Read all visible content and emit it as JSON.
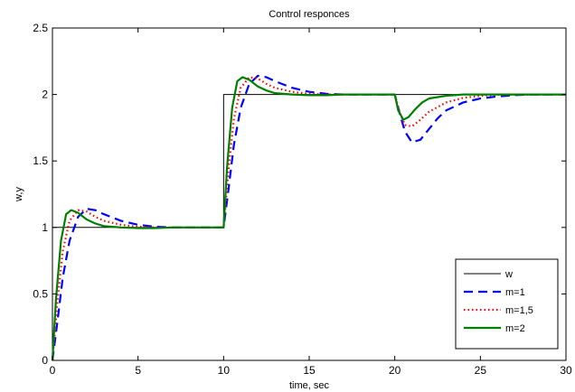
{
  "chart_data": {
    "type": "line",
    "title": "Control responces",
    "xlabel": "time, sec",
    "ylabel": "w,y",
    "xlim": [
      0,
      30
    ],
    "ylim": [
      0,
      2.5
    ],
    "xticks": [
      "0",
      "5",
      "10",
      "15",
      "20",
      "25",
      "30"
    ],
    "yticks": [
      "0",
      "0.5",
      "1",
      "1.5",
      "2",
      "2.5"
    ],
    "grid": false,
    "legend_position": "bottom-right",
    "series": [
      {
        "name": "w",
        "color": "#000000",
        "style": "solid",
        "x": [
          0,
          0,
          10,
          10,
          30
        ],
        "y": [
          0,
          1,
          1,
          2,
          2
        ]
      },
      {
        "name": "m=1",
        "color": "#0000ff",
        "style": "dashed",
        "x": [
          0,
          0.3,
          0.6,
          1.0,
          1.5,
          2.0,
          2.5,
          3.0,
          4.0,
          5.0,
          6.0,
          7.0,
          8.0,
          9.0,
          10.0,
          10.3,
          10.6,
          11.0,
          11.5,
          12.0,
          12.5,
          13.0,
          14.0,
          15.0,
          16.0,
          17.0,
          18.0,
          19.0,
          20.0,
          20.3,
          20.6,
          21.0,
          21.5,
          22.0,
          22.5,
          23.0,
          24.0,
          25.0,
          26.0,
          27.0,
          28.0,
          30.0
        ],
        "y": [
          0,
          0.3,
          0.62,
          0.9,
          1.08,
          1.14,
          1.13,
          1.1,
          1.05,
          1.02,
          1.005,
          1.0,
          1.0,
          1.0,
          1.0,
          1.3,
          1.62,
          1.9,
          2.08,
          2.14,
          2.13,
          2.1,
          2.05,
          2.02,
          2.005,
          2.0,
          2.0,
          2.0,
          2.0,
          1.85,
          1.72,
          1.64,
          1.66,
          1.74,
          1.82,
          1.88,
          1.94,
          1.97,
          1.985,
          1.995,
          2.0,
          2.0
        ]
      },
      {
        "name": "m=1,5",
        "color": "#ff0000",
        "style": "dotted",
        "x": [
          0,
          0.3,
          0.6,
          1.0,
          1.5,
          2.0,
          2.5,
          3.0,
          4.0,
          5.0,
          6.0,
          7.0,
          8.0,
          9.0,
          10.0,
          10.3,
          10.6,
          11.0,
          11.5,
          12.0,
          12.5,
          13.0,
          14.0,
          15.0,
          16.0,
          17.0,
          18.0,
          19.0,
          20.0,
          20.3,
          20.6,
          21.0,
          21.5,
          22.0,
          23.0,
          24.0,
          25.0,
          26.0,
          30.0
        ],
        "y": [
          0,
          0.45,
          0.82,
          1.05,
          1.13,
          1.12,
          1.08,
          1.05,
          1.02,
          1.005,
          1.0,
          1.0,
          1.0,
          1.0,
          1.0,
          1.45,
          1.82,
          2.05,
          2.13,
          2.12,
          2.08,
          2.05,
          2.02,
          2.005,
          2.0,
          2.0,
          2.0,
          2.0,
          2.0,
          1.86,
          1.77,
          1.76,
          1.81,
          1.87,
          1.94,
          1.975,
          1.99,
          1.998,
          2.0
        ]
      },
      {
        "name": "m=2",
        "color": "#008000",
        "style": "solid",
        "x": [
          0,
          0.2,
          0.5,
          0.8,
          1.1,
          1.5,
          2.0,
          2.5,
          3.0,
          4.0,
          5.0,
          6.0,
          7.0,
          8.0,
          9.0,
          10.0,
          10.2,
          10.5,
          10.8,
          11.1,
          11.5,
          12.0,
          12.5,
          13.0,
          14.0,
          15.0,
          16.0,
          17.0,
          18.0,
          19.0,
          20.0,
          20.2,
          20.5,
          20.8,
          21.2,
          21.6,
          22.0,
          23.0,
          24.0,
          25.0,
          26.0,
          30.0
        ],
        "y": [
          0,
          0.45,
          0.9,
          1.1,
          1.13,
          1.11,
          1.06,
          1.03,
          1.01,
          1.0,
          0.995,
          0.995,
          1.0,
          1.0,
          1.0,
          1.0,
          1.45,
          1.9,
          2.1,
          2.13,
          2.11,
          2.06,
          2.03,
          2.01,
          2.0,
          1.995,
          1.995,
          2.0,
          2.0,
          2.0,
          2.0,
          1.88,
          1.81,
          1.83,
          1.89,
          1.94,
          1.97,
          1.99,
          2.0,
          2.0,
          2.0,
          2.0
        ]
      }
    ]
  }
}
